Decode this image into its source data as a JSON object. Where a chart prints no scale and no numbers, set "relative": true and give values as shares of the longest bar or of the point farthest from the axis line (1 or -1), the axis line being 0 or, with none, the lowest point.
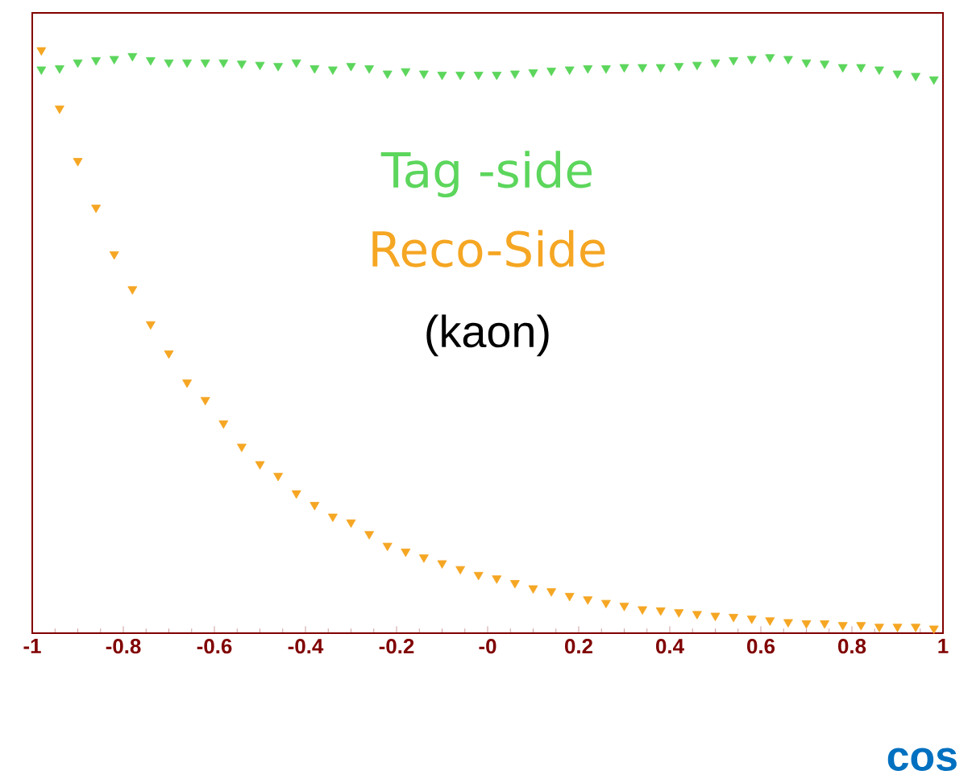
{
  "chart_data": {
    "type": "scatter",
    "relative": true,
    "xlabel": "cos",
    "annotations": [
      "(kaon)"
    ],
    "marker": "triangle",
    "tick_labels": "x",
    "xlim": [
      -1,
      1
    ],
    "xticks": [
      -1,
      -0.8,
      -0.6,
      -0.4,
      -0.2,
      {
        "value": 0,
        "label": "-0"
      },
      0.2,
      0.4,
      0.6,
      0.8,
      1
    ],
    "x": [
      -0.98,
      -0.94,
      -0.9,
      -0.86,
      -0.82,
      -0.78,
      -0.74,
      -0.7,
      -0.66,
      -0.62,
      -0.58,
      -0.54,
      -0.5,
      -0.46,
      -0.42,
      -0.38,
      -0.34,
      -0.3,
      -0.26,
      -0.22,
      -0.18,
      -0.14,
      -0.1,
      -0.06,
      -0.02,
      0.02,
      0.06,
      0.1,
      0.14,
      0.18,
      0.22,
      0.26,
      0.3,
      0.34,
      0.38,
      0.42,
      0.46,
      0.5,
      0.54,
      0.58,
      0.62,
      0.66,
      0.7,
      0.74,
      0.78,
      0.82,
      0.86,
      0.9,
      0.94,
      0.98
    ],
    "series": [
      {
        "name": "Tag -side",
        "color": "#5cd65c",
        "values": [
          0.967,
          0.969,
          0.979,
          0.983,
          0.985,
          0.99,
          0.983,
          0.979,
          0.979,
          0.979,
          0.979,
          0.977,
          0.975,
          0.973,
          0.979,
          0.969,
          0.967,
          0.973,
          0.969,
          0.96,
          0.964,
          0.96,
          0.958,
          0.958,
          0.958,
          0.958,
          0.96,
          0.962,
          0.965,
          0.967,
          0.969,
          0.969,
          0.971,
          0.971,
          0.971,
          0.973,
          0.975,
          0.979,
          0.983,
          0.985,
          0.988,
          0.985,
          0.979,
          0.977,
          0.971,
          0.971,
          0.967,
          0.96,
          0.956,
          0.95
        ]
      },
      {
        "name": "Reco-Side",
        "color": "#f5a623",
        "values": [
          1.0,
          0.9,
          0.81,
          0.73,
          0.65,
          0.59,
          0.53,
          0.48,
          0.43,
          0.4,
          0.36,
          0.32,
          0.29,
          0.27,
          0.24,
          0.22,
          0.2,
          0.19,
          0.17,
          0.15,
          0.14,
          0.13,
          0.12,
          0.11,
          0.1,
          0.094,
          0.086,
          0.077,
          0.072,
          0.064,
          0.058,
          0.052,
          0.047,
          0.041,
          0.039,
          0.036,
          0.033,
          0.03,
          0.028,
          0.025,
          0.022,
          0.019,
          0.017,
          0.017,
          0.014,
          0.014,
          0.011,
          0.011,
          0.011,
          0.008
        ]
      }
    ]
  }
}
